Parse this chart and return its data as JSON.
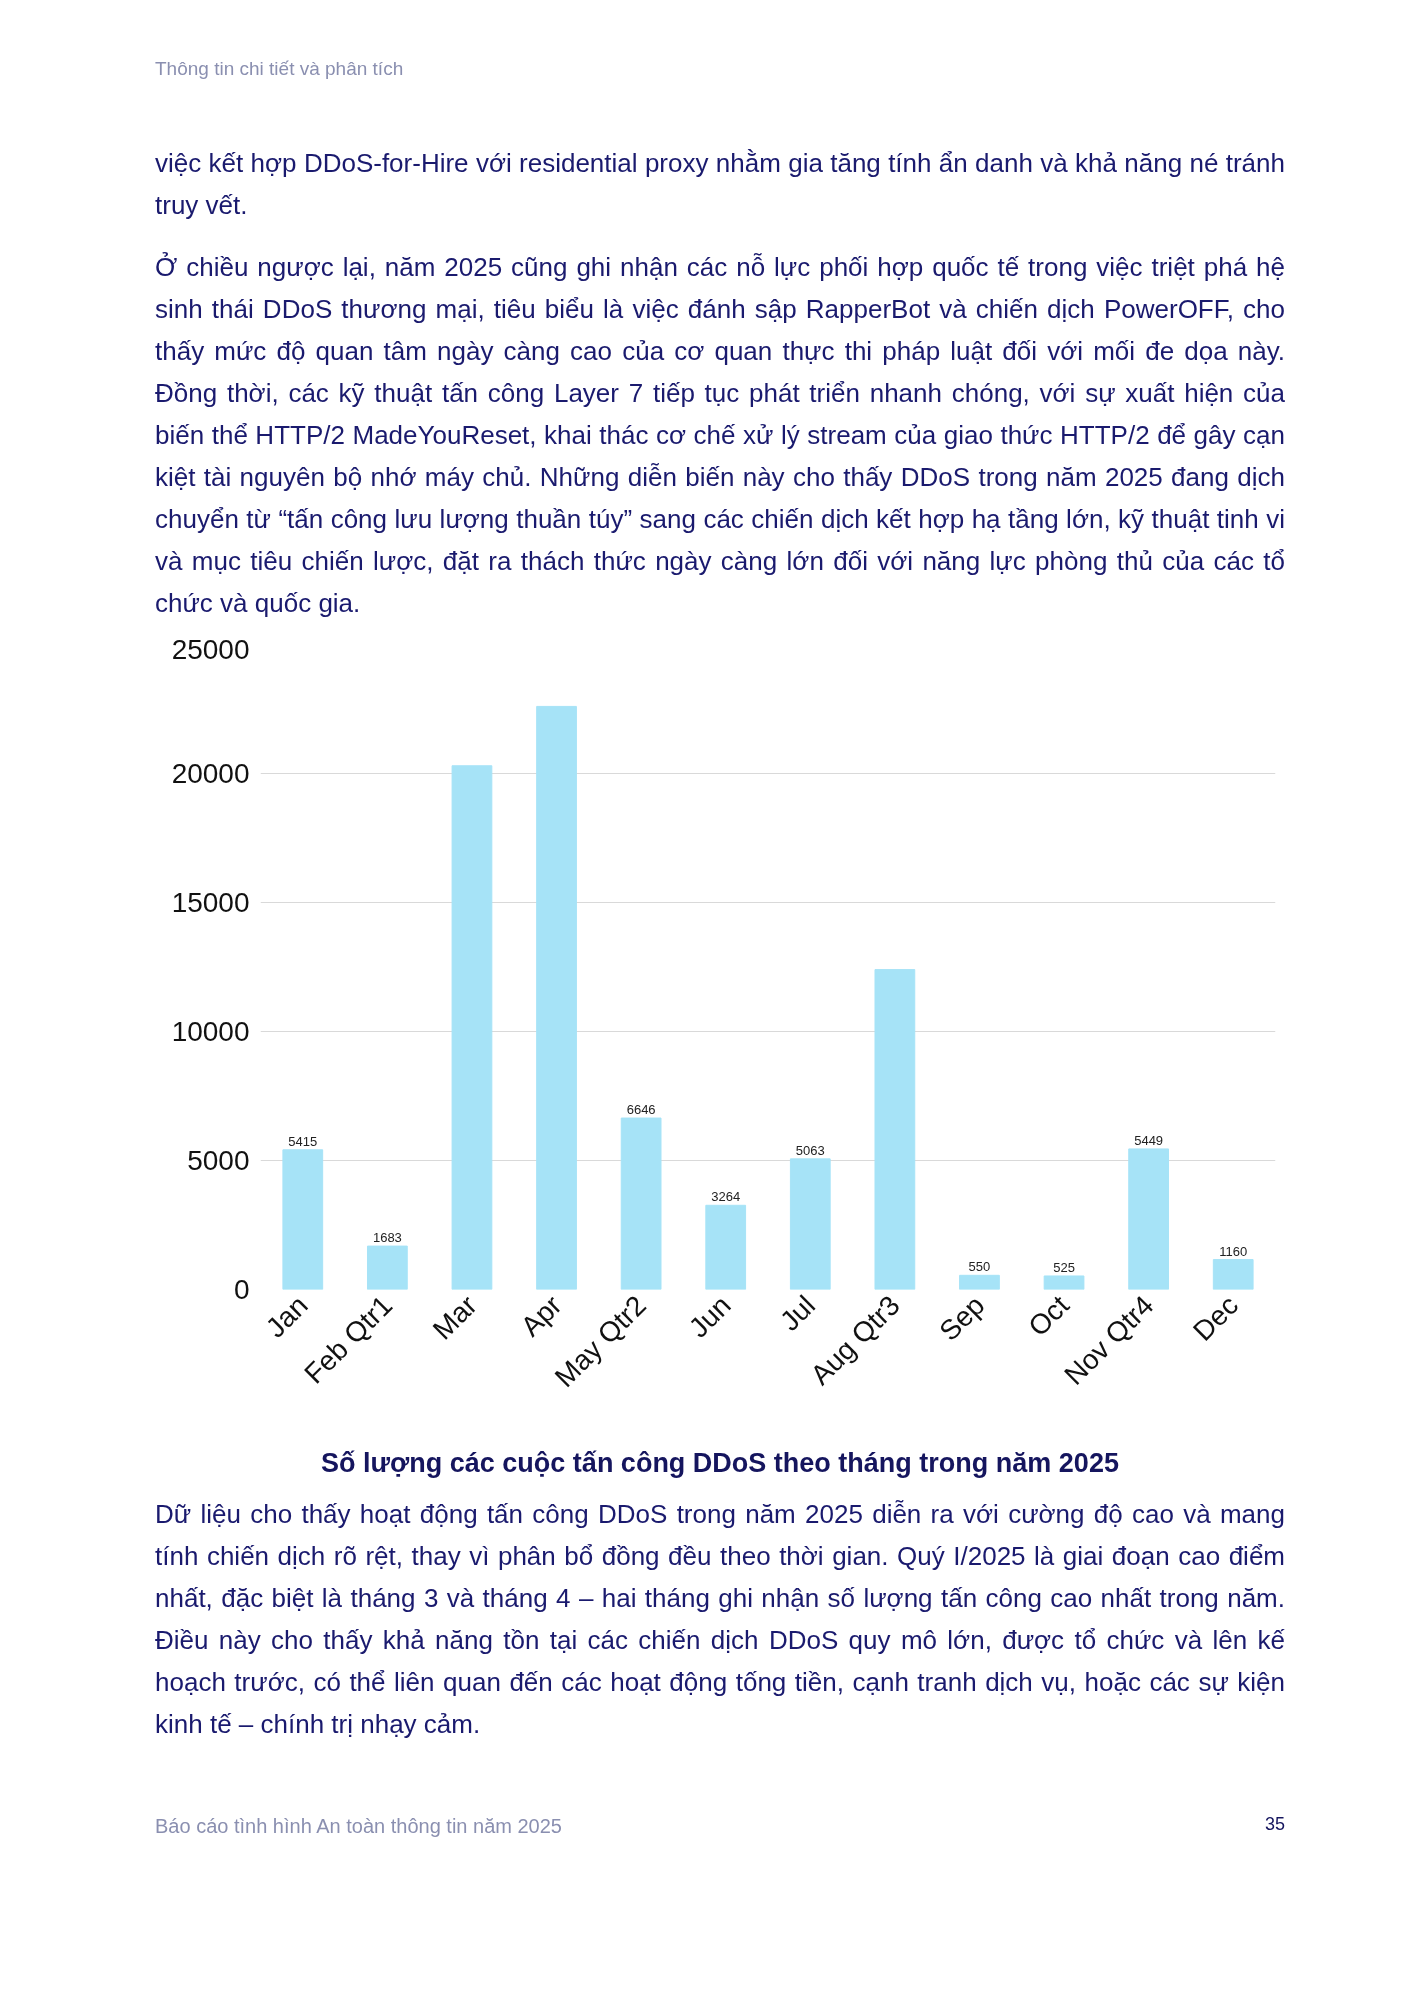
{
  "chart_data": {
    "type": "bar",
    "title": "Số lượng các cuộc tấn công DDoS theo tháng trong năm 2025",
    "categories": [
      "Jan",
      "Feb Qtr1",
      "Mar",
      "Apr",
      "May Qtr2",
      "Jun",
      "Jul",
      "Aug Qtr3",
      "Sep",
      "Oct",
      "Nov Qtr4",
      "Dec"
    ],
    "values": [
      5415,
      1683,
      20300,
      22600,
      6646,
      3264,
      5063,
      12400,
      550,
      525,
      5449,
      1160
    ],
    "value_labels": [
      "5415",
      "1683",
      null,
      null,
      "6646",
      "3264",
      "5063",
      null,
      "550",
      "525",
      "5449",
      "1160"
    ],
    "color": "#a6e3f7",
    "ylim": [
      0,
      25000
    ],
    "yticks": [
      0,
      5000,
      10000,
      15000,
      20000,
      25000
    ],
    "grid": "y",
    "annotations": [
      "Thông tin chi tiết và phân tích",
      "việc kết hợp DDoS-for-Hire với residential proxy nhằm gia tăng tính ẩn danh và khả năng né tránh truy vết.",
      "Ở chiều ngược lại, năm 2025 cũng ghi nhận các nỗ lực phối hợp quốc tế trong việc triệt phá hệ sinh thái DDoS thương mại, tiêu biểu là việc đánh sập RapperBot và chiến dịch PowerOFF, cho thấy mức độ quan tâm ngày càng cao của cơ quan thực thi pháp luật đối với mối đe dọa này. Đồng thời, các kỹ thuật tấn công Layer 7 tiếp tục phát triển nhanh chóng, với sự xuất hiện của biến thể HTTP/2 MadeYouReset, khai thác cơ chế xử lý stream của giao thức HTTP/2 để gây cạn kiệt tài nguyên bộ nhớ máy chủ. Những diễn biến này cho thấy DDoS trong năm 2025 đang dịch chuyển từ “tấn công lưu lượng thuần túy” sang các chiến dịch kết hợp hạ tầng lớn, kỹ thuật tinh vi và mục tiêu chiến lược, đặt ra thách thức ngày càng lớn đối với năng lực phòng thủ của các tổ chức và quốc gia.",
      "Dữ liệu cho thấy hoạt động tấn công DDoS trong năm 2025 diễn ra với cường độ cao và mang tính chiến dịch rõ rệt, thay vì phân bổ đồng đều theo thời gian. Quý I/2025 là giai đoạn cao điểm nhất, đặc biệt là tháng 3 và tháng 4 – hai tháng ghi nhận số lượng tấn công cao nhất trong năm. Điều này cho thấy khả năng tồn tại các chiến dịch DDoS quy mô lớn, được tổ chức và lên kế hoạch trước, có thể liên quan đến các hoạt động tống tiền, cạnh tranh dịch vụ, hoặc các sự kiện kinh tế – chính trị nhạy cảm.",
      "Báo cáo tình hình An toàn thông tin năm 2025",
      "35"
    ]
  }
}
